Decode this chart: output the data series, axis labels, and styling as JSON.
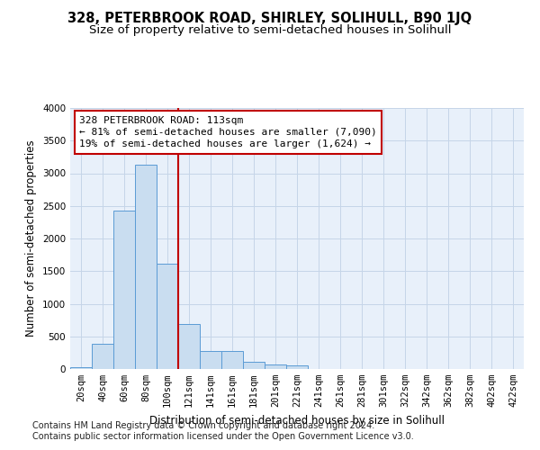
{
  "title": "328, PETERBROOK ROAD, SHIRLEY, SOLIHULL, B90 1JQ",
  "subtitle": "Size of property relative to semi-detached houses in Solihull",
  "xlabel": "Distribution of semi-detached houses by size in Solihull",
  "ylabel": "Number of semi-detached properties",
  "footnote1": "Contains HM Land Registry data © Crown copyright and database right 2024.",
  "footnote2": "Contains public sector information licensed under the Open Government Licence v3.0.",
  "bar_categories": [
    "20sqm",
    "40sqm",
    "60sqm",
    "80sqm",
    "100sqm",
    "121sqm",
    "141sqm",
    "161sqm",
    "181sqm",
    "201sqm",
    "221sqm",
    "241sqm",
    "261sqm",
    "281sqm",
    "301sqm",
    "322sqm",
    "342sqm",
    "362sqm",
    "382sqm",
    "402sqm",
    "422sqm"
  ],
  "bar_values": [
    30,
    380,
    2430,
    3130,
    1610,
    690,
    280,
    270,
    115,
    70,
    60,
    0,
    0,
    0,
    0,
    0,
    0,
    0,
    0,
    0,
    0
  ],
  "bar_color": "#c9ddf0",
  "bar_edge_color": "#5b9bd5",
  "vline_color": "#c00000",
  "annotation_text": "328 PETERBROOK ROAD: 113sqm\n← 81% of semi-detached houses are smaller (7,090)\n19% of semi-detached houses are larger (1,624) →",
  "annotation_box_color": "#ffffff",
  "annotation_box_edge_color": "#c00000",
  "ylim": [
    0,
    4000
  ],
  "yticks": [
    0,
    500,
    1000,
    1500,
    2000,
    2500,
    3000,
    3500,
    4000
  ],
  "plot_bg_color": "#e8f0fa",
  "background_color": "#ffffff",
  "grid_color": "#c5d5e8",
  "title_fontsize": 10.5,
  "subtitle_fontsize": 9.5,
  "axis_fontsize": 8.5,
  "tick_fontsize": 7.5,
  "annotation_fontsize": 8,
  "footnote_fontsize": 7
}
